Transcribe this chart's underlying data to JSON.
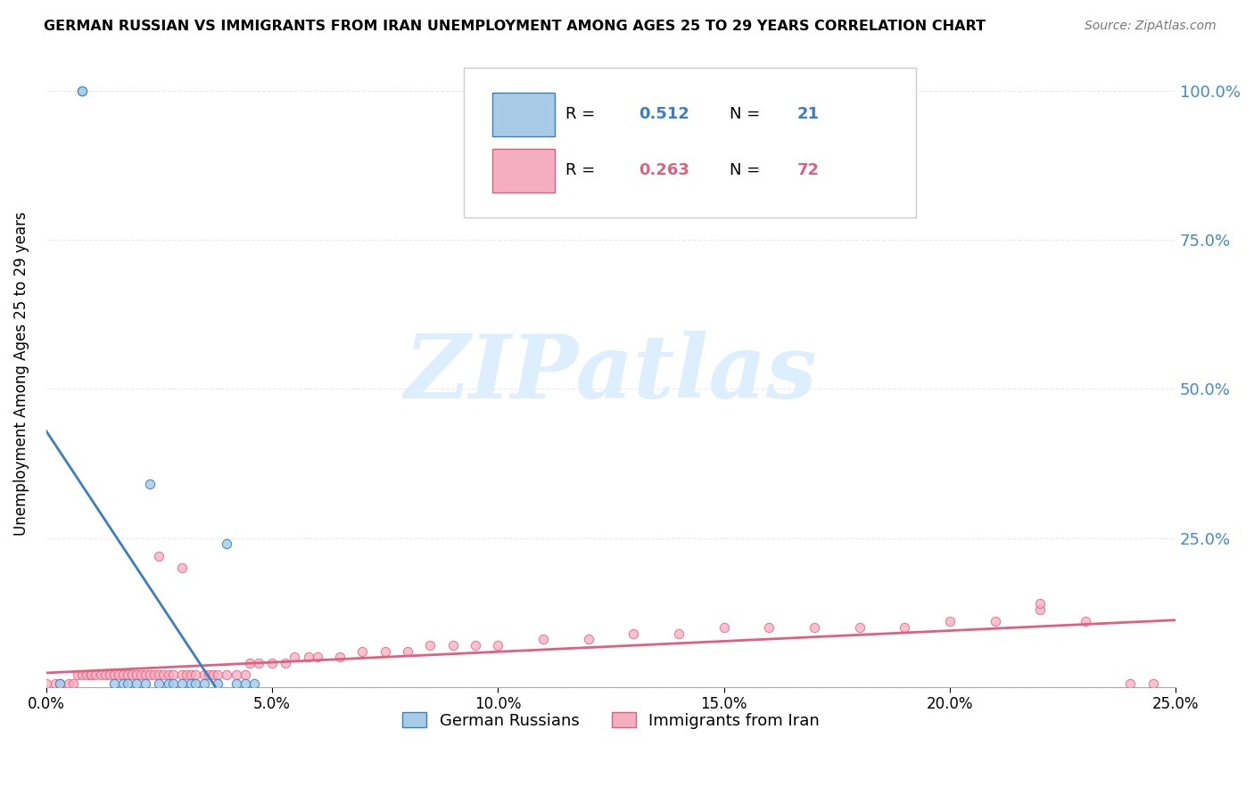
{
  "title": "GERMAN RUSSIAN VS IMMIGRANTS FROM IRAN UNEMPLOYMENT AMONG AGES 25 TO 29 YEARS CORRELATION CHART",
  "source": "Source: ZipAtlas.com",
  "ylabel": "Unemployment Among Ages 25 to 29 years",
  "xlim": [
    0.0,
    0.25
  ],
  "ylim": [
    0.0,
    1.05
  ],
  "blue_R": 0.512,
  "blue_N": 21,
  "pink_R": 0.263,
  "pink_N": 72,
  "blue_color": "#a8cce8",
  "pink_color": "#f5adc0",
  "blue_line_color": "#3a7fbf",
  "pink_line_color": "#e06080",
  "legend_label_blue": "German Russians",
  "legend_label_pink": "Immigrants from Iran",
  "blue_scatter_x": [
    0.003,
    0.008,
    0.008,
    0.015,
    0.017,
    0.018,
    0.02,
    0.022,
    0.023,
    0.025,
    0.027,
    0.028,
    0.03,
    0.032,
    0.033,
    0.035,
    0.038,
    0.04,
    0.042,
    0.044,
    0.046
  ],
  "blue_scatter_y": [
    0.005,
    1.0,
    1.0,
    0.005,
    0.005,
    0.005,
    0.005,
    0.005,
    0.34,
    0.005,
    0.005,
    0.005,
    0.005,
    0.005,
    0.005,
    0.005,
    0.005,
    0.24,
    0.005,
    0.005,
    0.005
  ],
  "pink_scatter_x": [
    0.0,
    0.002,
    0.003,
    0.005,
    0.006,
    0.007,
    0.008,
    0.009,
    0.01,
    0.01,
    0.011,
    0.012,
    0.013,
    0.014,
    0.015,
    0.016,
    0.017,
    0.018,
    0.019,
    0.02,
    0.021,
    0.022,
    0.023,
    0.024,
    0.025,
    0.026,
    0.027,
    0.028,
    0.03,
    0.031,
    0.032,
    0.033,
    0.035,
    0.036,
    0.037,
    0.038,
    0.04,
    0.042,
    0.044,
    0.045,
    0.047,
    0.05,
    0.053,
    0.055,
    0.058,
    0.06,
    0.065,
    0.07,
    0.075,
    0.08,
    0.085,
    0.09,
    0.095,
    0.1,
    0.11,
    0.12,
    0.13,
    0.14,
    0.15,
    0.16,
    0.17,
    0.18,
    0.19,
    0.2,
    0.21,
    0.22,
    0.23,
    0.24,
    0.245,
    0.025,
    0.03,
    0.22
  ],
  "pink_scatter_y": [
    0.005,
    0.005,
    0.005,
    0.005,
    0.005,
    0.02,
    0.02,
    0.02,
    0.02,
    0.02,
    0.02,
    0.02,
    0.02,
    0.02,
    0.02,
    0.02,
    0.02,
    0.02,
    0.02,
    0.02,
    0.02,
    0.02,
    0.02,
    0.02,
    0.02,
    0.02,
    0.02,
    0.02,
    0.02,
    0.02,
    0.02,
    0.02,
    0.02,
    0.02,
    0.02,
    0.02,
    0.02,
    0.02,
    0.02,
    0.04,
    0.04,
    0.04,
    0.04,
    0.05,
    0.05,
    0.05,
    0.05,
    0.06,
    0.06,
    0.06,
    0.07,
    0.07,
    0.07,
    0.07,
    0.08,
    0.08,
    0.09,
    0.09,
    0.1,
    0.1,
    0.1,
    0.1,
    0.1,
    0.11,
    0.11,
    0.13,
    0.11,
    0.005,
    0.005,
    0.22,
    0.2,
    0.14
  ],
  "xticks": [
    0.0,
    0.05,
    0.1,
    0.15,
    0.2,
    0.25
  ],
  "xticklabels": [
    "0.0%",
    "5.0%",
    "10.0%",
    "15.0%",
    "20.0%",
    "25.0%"
  ],
  "yticks_right": [
    0.0,
    0.25,
    0.5,
    0.75,
    1.0
  ],
  "yticklabels_right": [
    "",
    "25.0%",
    "50.0%",
    "75.0%",
    "100.0%"
  ],
  "grid_color": "#dddddd",
  "watermark_color": "#ddeeff"
}
